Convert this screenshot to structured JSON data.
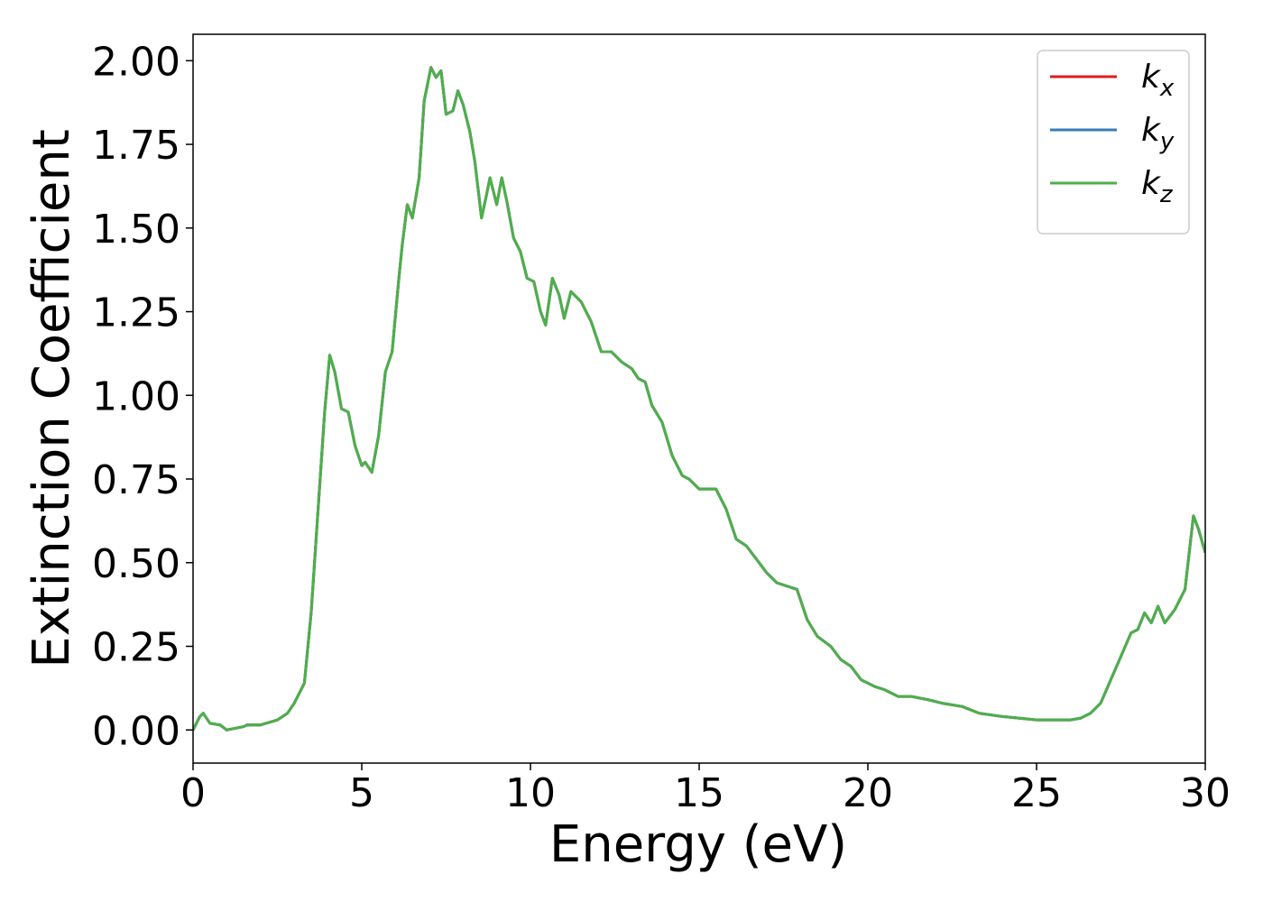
{
  "chart_data": {
    "type": "line",
    "xlabel": "Energy (eV)",
    "ylabel": "Extinction Coefficient",
    "x": [
      0,
      0.2,
      0.3,
      0.5,
      0.8,
      1.0,
      1.5,
      1.6,
      2.0,
      2.5,
      2.8,
      3.0,
      3.3,
      3.5,
      3.7,
      3.9,
      4.05,
      4.2,
      4.4,
      4.6,
      4.8,
      5.0,
      5.1,
      5.3,
      5.5,
      5.7,
      5.9,
      6.1,
      6.2,
      6.35,
      6.5,
      6.7,
      6.85,
      7.05,
      7.2,
      7.35,
      7.5,
      7.7,
      7.85,
      8.0,
      8.2,
      8.35,
      8.55,
      8.7,
      8.8,
      9.0,
      9.15,
      9.3,
      9.5,
      9.7,
      9.9,
      10.1,
      10.3,
      10.45,
      10.65,
      10.85,
      11.0,
      11.2,
      11.5,
      11.8,
      12.1,
      12.4,
      12.7,
      13.0,
      13.2,
      13.4,
      13.6,
      13.9,
      14.2,
      14.5,
      14.7,
      15.0,
      15.3,
      15.5,
      15.8,
      16.1,
      16.4,
      16.7,
      17.0,
      17.3,
      17.6,
      17.9,
      18.2,
      18.5,
      18.9,
      19.2,
      19.5,
      19.8,
      20.2,
      20.5,
      20.9,
      21.3,
      21.8,
      22.2,
      22.8,
      23.3,
      24.0,
      25.0,
      26.0,
      26.3,
      26.6,
      26.9,
      27.2,
      27.5,
      27.8,
      28.0,
      28.2,
      28.4,
      28.6,
      28.8,
      29.1,
      29.4,
      29.65,
      29.8,
      30.0
    ],
    "series": [
      {
        "name": "kx",
        "color": "#e41a1c",
        "values": [
          0,
          0.04,
          0.05,
          0.02,
          0.015,
          0.0,
          0.01,
          0.015,
          0.015,
          0.03,
          0.05,
          0.08,
          0.14,
          0.35,
          0.65,
          0.95,
          1.12,
          1.07,
          0.96,
          0.95,
          0.85,
          0.79,
          0.8,
          0.77,
          0.88,
          1.07,
          1.13,
          1.35,
          1.45,
          1.57,
          1.53,
          1.65,
          1.88,
          1.98,
          1.95,
          1.97,
          1.84,
          1.85,
          1.91,
          1.87,
          1.79,
          1.7,
          1.53,
          1.6,
          1.65,
          1.57,
          1.65,
          1.58,
          1.47,
          1.43,
          1.35,
          1.34,
          1.25,
          1.21,
          1.35,
          1.3,
          1.23,
          1.31,
          1.28,
          1.22,
          1.13,
          1.13,
          1.1,
          1.08,
          1.05,
          1.04,
          0.97,
          0.92,
          0.82,
          0.76,
          0.75,
          0.72,
          0.72,
          0.72,
          0.66,
          0.57,
          0.55,
          0.51,
          0.47,
          0.44,
          0.43,
          0.42,
          0.33,
          0.28,
          0.25,
          0.21,
          0.19,
          0.15,
          0.13,
          0.12,
          0.1,
          0.1,
          0.09,
          0.08,
          0.07,
          0.05,
          0.04,
          0.03,
          0.03,
          0.035,
          0.05,
          0.08,
          0.15,
          0.22,
          0.29,
          0.3,
          0.35,
          0.32,
          0.37,
          0.32,
          0.36,
          0.42,
          0.64,
          0.6,
          0.53
        ]
      },
      {
        "name": "ky",
        "color": "#377eb8",
        "values": [
          0,
          0.04,
          0.05,
          0.02,
          0.015,
          0.0,
          0.01,
          0.015,
          0.015,
          0.03,
          0.05,
          0.08,
          0.14,
          0.35,
          0.65,
          0.95,
          1.12,
          1.07,
          0.96,
          0.95,
          0.85,
          0.79,
          0.8,
          0.77,
          0.88,
          1.07,
          1.13,
          1.35,
          1.45,
          1.57,
          1.53,
          1.65,
          1.88,
          1.98,
          1.95,
          1.97,
          1.84,
          1.85,
          1.91,
          1.87,
          1.79,
          1.7,
          1.53,
          1.6,
          1.65,
          1.57,
          1.65,
          1.58,
          1.47,
          1.43,
          1.35,
          1.34,
          1.25,
          1.21,
          1.35,
          1.3,
          1.23,
          1.31,
          1.28,
          1.22,
          1.13,
          1.13,
          1.1,
          1.08,
          1.05,
          1.04,
          0.97,
          0.92,
          0.82,
          0.76,
          0.75,
          0.72,
          0.72,
          0.72,
          0.66,
          0.57,
          0.55,
          0.51,
          0.47,
          0.44,
          0.43,
          0.42,
          0.33,
          0.28,
          0.25,
          0.21,
          0.19,
          0.15,
          0.13,
          0.12,
          0.1,
          0.1,
          0.09,
          0.08,
          0.07,
          0.05,
          0.04,
          0.03,
          0.03,
          0.035,
          0.05,
          0.08,
          0.15,
          0.22,
          0.29,
          0.3,
          0.35,
          0.32,
          0.37,
          0.32,
          0.36,
          0.42,
          0.64,
          0.6,
          0.53
        ]
      },
      {
        "name": "kz",
        "color": "#4daf4a",
        "values": [
          0,
          0.04,
          0.05,
          0.02,
          0.015,
          0.0,
          0.01,
          0.015,
          0.015,
          0.03,
          0.05,
          0.08,
          0.14,
          0.35,
          0.65,
          0.95,
          1.12,
          1.07,
          0.96,
          0.95,
          0.85,
          0.79,
          0.8,
          0.77,
          0.88,
          1.07,
          1.13,
          1.35,
          1.45,
          1.57,
          1.53,
          1.65,
          1.88,
          1.98,
          1.95,
          1.97,
          1.84,
          1.85,
          1.91,
          1.87,
          1.79,
          1.7,
          1.53,
          1.6,
          1.65,
          1.57,
          1.65,
          1.58,
          1.47,
          1.43,
          1.35,
          1.34,
          1.25,
          1.21,
          1.35,
          1.3,
          1.23,
          1.31,
          1.28,
          1.22,
          1.13,
          1.13,
          1.1,
          1.08,
          1.05,
          1.04,
          0.97,
          0.92,
          0.82,
          0.76,
          0.75,
          0.72,
          0.72,
          0.72,
          0.66,
          0.57,
          0.55,
          0.51,
          0.47,
          0.44,
          0.43,
          0.42,
          0.33,
          0.28,
          0.25,
          0.21,
          0.19,
          0.15,
          0.13,
          0.12,
          0.1,
          0.1,
          0.09,
          0.08,
          0.07,
          0.05,
          0.04,
          0.03,
          0.03,
          0.035,
          0.05,
          0.08,
          0.15,
          0.22,
          0.29,
          0.3,
          0.35,
          0.32,
          0.37,
          0.32,
          0.36,
          0.42,
          0.64,
          0.6,
          0.53
        ]
      }
    ],
    "xlim": [
      0,
      30
    ],
    "xticks": [
      0,
      5,
      10,
      15,
      20,
      25,
      30
    ],
    "ylim": [
      -0.099,
      2.079
    ],
    "yticks": [
      {
        "value": 0,
        "label": "0.00"
      },
      {
        "value": 0.25,
        "label": "0.25"
      },
      {
        "value": 0.5,
        "label": "0.50"
      },
      {
        "value": 0.75,
        "label": "0.75"
      },
      {
        "value": 1,
        "label": "1.00"
      },
      {
        "value": 1.25,
        "label": "1.25"
      },
      {
        "value": 1.5,
        "label": "1.50"
      },
      {
        "value": 1.75,
        "label": "1.75"
      },
      {
        "value": 2,
        "label": "2.00"
      }
    ],
    "grid": false,
    "legend": "upper right"
  }
}
